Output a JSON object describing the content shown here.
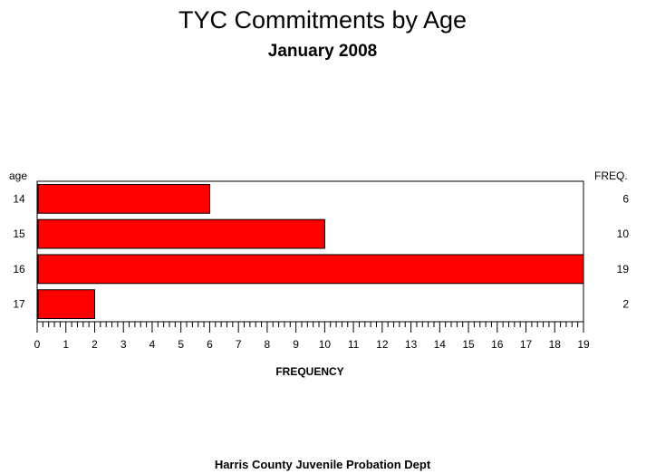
{
  "chart_data": {
    "type": "bar",
    "orientation": "horizontal",
    "title": "TYC Commitments by Age",
    "subtitle": "January 2008",
    "category_header": "age",
    "value_header": "FREQ.",
    "categories": [
      "14",
      "15",
      "16",
      "17"
    ],
    "values": [
      6,
      10,
      19,
      2
    ],
    "value_labels": [
      "6",
      "10",
      "19",
      "2"
    ],
    "xlabel": "FREQUENCY",
    "xlim": [
      0,
      19
    ],
    "xticks": [
      "0",
      "1",
      "2",
      "3",
      "4",
      "5",
      "6",
      "7",
      "8",
      "9",
      "10",
      "11",
      "12",
      "13",
      "14",
      "15",
      "16",
      "17",
      "18",
      "19"
    ],
    "minor_ticks_per_major": 4,
    "bar_color": "#ff0000",
    "grid": false,
    "legend": "none",
    "footnote": "Harris County Juvenile Probation Dept"
  }
}
